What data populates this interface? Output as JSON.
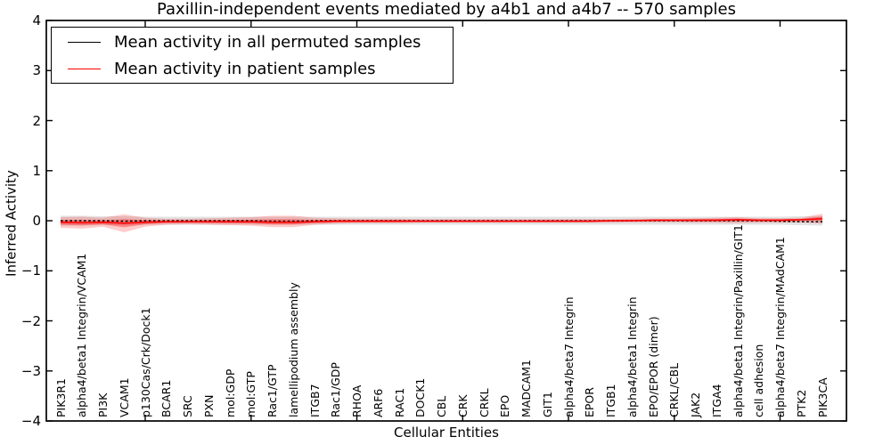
{
  "figure": {
    "background": "#ffffff",
    "axes_color": "#000000"
  },
  "chart_data": {
    "type": "line",
    "title": "Paxillin-independent events mediated by a4b1 and a4b7 -- 570 samples",
    "xlabel": "Cellular Entities",
    "ylabel": "Inferred Activity",
    "ylim": [
      -4,
      4
    ],
    "yticks": [
      4,
      3,
      2,
      1,
      0,
      -1,
      -2,
      -3,
      -4
    ],
    "x_major_tick_indices": [
      4,
      9,
      14,
      19,
      24,
      29,
      34
    ],
    "grid": false,
    "legend_position": "upper left",
    "categories": [
      "PIK3R1",
      "alpha4/beta1 Integrin/VCAM1",
      "PI3K",
      "VCAM1",
      "p130Cas/Crk/Dock1",
      "BCAR1",
      "SRC",
      "PXN",
      "mol:GDP",
      "mol:GTP",
      "Rac1/GTP",
      "lamellipodium assembly",
      "ITGB7",
      "Rac1/GDP",
      "RHOA",
      "ARF6",
      "RAC1",
      "DOCK1",
      "CBL",
      "CRK",
      "CRKL",
      "EPO",
      "MADCAM1",
      "GIT1",
      "alpha4/beta7 Integrin",
      "EPOR",
      "ITGB1",
      "alpha4/beta1 Integrin",
      "EPO/EPOR (dimer)",
      "CRKL/CBL",
      "JAK2",
      "ITGA4",
      "alpha4/beta1 Integrin/Paxillin/GIT1",
      "cell adhesion",
      "alpha4/beta7 Integrin/MAdCAM1",
      "PTK2",
      "PIK3CA"
    ],
    "series": [
      {
        "name": "Mean activity in all permuted samples",
        "color": "#000000",
        "style": "dashed",
        "values": [
          0,
          0,
          0,
          -0.01,
          0,
          0,
          0,
          0,
          0,
          0,
          -0.01,
          -0.01,
          0,
          0,
          0,
          0,
          0,
          0,
          0,
          0,
          0,
          0,
          0,
          0,
          0,
          0,
          0,
          0,
          0,
          0,
          0,
          0,
          0,
          0,
          -0.01,
          -0.02,
          -0.02
        ]
      },
      {
        "name": "Mean activity in patient samples",
        "color": "#ff0000",
        "style": "solid",
        "values": [
          -0.03,
          -0.04,
          -0.03,
          -0.05,
          -0.03,
          -0.02,
          -0.02,
          -0.02,
          -0.02,
          -0.02,
          -0.03,
          -0.03,
          -0.02,
          -0.01,
          -0.01,
          -0.01,
          -0.01,
          -0.01,
          -0.01,
          -0.01,
          -0.01,
          -0.01,
          -0.01,
          -0.01,
          -0.01,
          -0.01,
          0,
          0,
          0.01,
          0.01,
          0.01,
          0.01,
          0.02,
          0.01,
          0.01,
          0.02,
          0.04
        ]
      }
    ],
    "bands": [
      {
        "name": "permuted-samples-spread",
        "color": "#808080",
        "opacity": 0.22,
        "top": [
          0.1,
          0.1,
          0.09,
          0.09,
          0.08,
          0.08,
          0.08,
          0.08,
          0.08,
          0.08,
          0.08,
          0.08,
          0.08,
          0.08,
          0.08,
          0.08,
          0.08,
          0.08,
          0.08,
          0.08,
          0.08,
          0.08,
          0.08,
          0.08,
          0.08,
          0.08,
          0.08,
          0.08,
          0.08,
          0.08,
          0.08,
          0.08,
          0.08,
          0.08,
          0.08,
          0.09,
          0.1
        ],
        "bottom": [
          -0.1,
          -0.1,
          -0.09,
          -0.09,
          -0.08,
          -0.08,
          -0.08,
          -0.08,
          -0.08,
          -0.08,
          -0.08,
          -0.08,
          -0.08,
          -0.08,
          -0.08,
          -0.08,
          -0.08,
          -0.08,
          -0.08,
          -0.08,
          -0.08,
          -0.08,
          -0.08,
          -0.08,
          -0.08,
          -0.08,
          -0.08,
          -0.08,
          -0.08,
          -0.08,
          -0.08,
          -0.08,
          -0.08,
          -0.08,
          -0.08,
          -0.09,
          -0.1
        ]
      },
      {
        "name": "patient-samples-spread",
        "color": "#ff0000",
        "opacity": 0.2,
        "inner_fraction": 0.45,
        "top": [
          0.07,
          0.08,
          0.06,
          0.13,
          0.06,
          0.04,
          0.04,
          0.05,
          0.06,
          0.07,
          0.1,
          0.1,
          0.06,
          0.05,
          0.04,
          0.04,
          0.04,
          0.03,
          0.03,
          0.03,
          0.03,
          0.03,
          0.03,
          0.03,
          0.03,
          0.03,
          0.03,
          0.04,
          0.04,
          0.04,
          0.05,
          0.06,
          0.07,
          0.05,
          0.05,
          0.06,
          0.14
        ],
        "bottom": [
          -0.14,
          -0.16,
          -0.12,
          -0.23,
          -0.12,
          -0.08,
          -0.07,
          -0.08,
          -0.09,
          -0.1,
          -0.13,
          -0.13,
          -0.08,
          -0.06,
          -0.05,
          -0.05,
          -0.05,
          -0.04,
          -0.04,
          -0.04,
          -0.04,
          -0.04,
          -0.04,
          -0.04,
          -0.04,
          -0.04,
          -0.04,
          -0.03,
          -0.03,
          -0.03,
          -0.04,
          -0.04,
          -0.05,
          -0.04,
          -0.04,
          -0.03,
          -0.06
        ]
      }
    ]
  }
}
